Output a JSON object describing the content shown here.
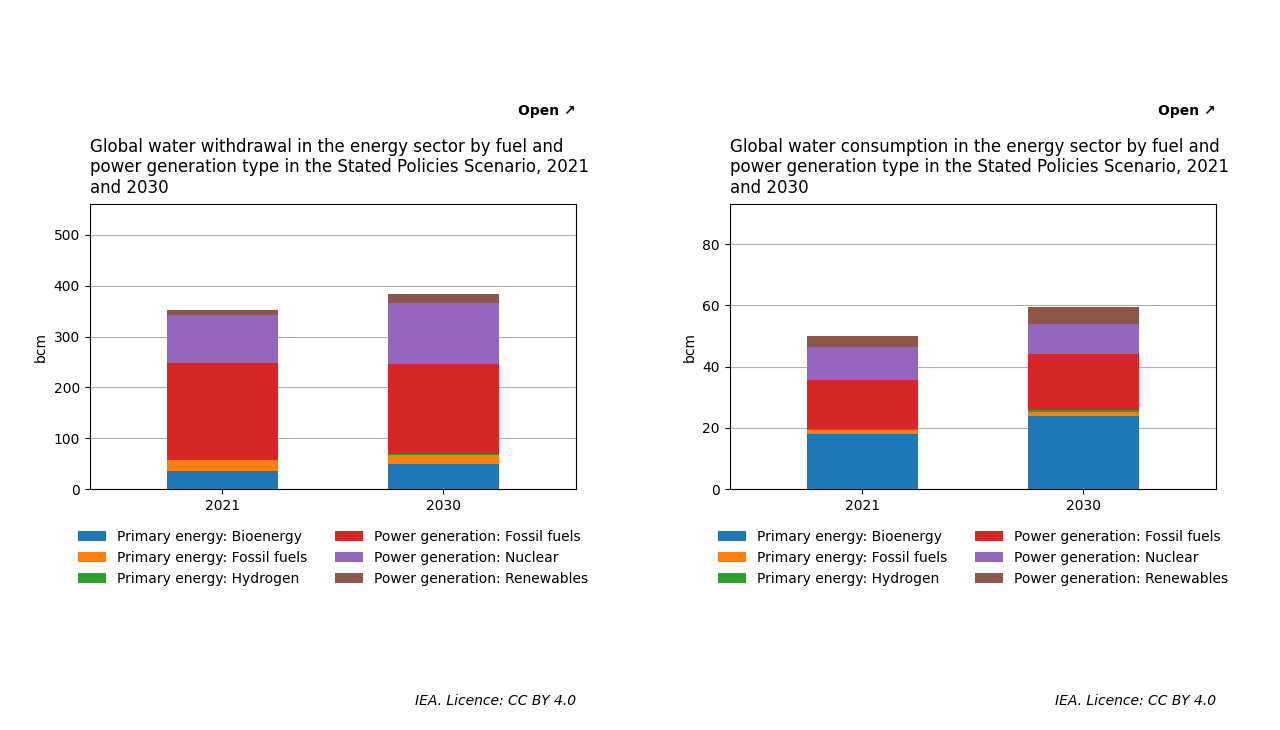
{
  "chart_data": [
    {
      "type": "bar",
      "stacked": true,
      "title": "Global water withdrawal in the energy sector by fuel and\npower generation type in the Stated Policies Scenario, 2021\nand 2030",
      "ylabel": "bcm",
      "categories": [
        "2021",
        "2030"
      ],
      "series": [
        {
          "name": "Primary energy: Bioenergy",
          "values": [
            35,
            50
          ]
        },
        {
          "name": "Primary energy: Fossil fuels",
          "values": [
            22,
            18
          ]
        },
        {
          "name": "Primary energy: Hydrogen",
          "values": [
            0.5,
            0.5
          ]
        },
        {
          "name": "Power generation: Fossil fuels",
          "values": [
            190,
            178
          ]
        },
        {
          "name": "Power generation: Nuclear",
          "values": [
            95,
            120
          ]
        },
        {
          "name": "Power generation: Renewables",
          "values": [
            10,
            18
          ]
        }
      ],
      "ylim": [
        0,
        560
      ],
      "yticks": [
        0,
        100,
        200,
        300,
        400,
        500
      ],
      "grid": true,
      "legend": "upper center",
      "annotations": [
        "Open ↗",
        "IEA. Licence: CC BY 4.0"
      ]
    },
    {
      "type": "bar",
      "stacked": true,
      "title": "Global water consumption in the energy sector by fuel and\npower generation type in the Stated Policies Scenario, 2021\nand 2030",
      "ylabel": "bcm",
      "categories": [
        "2021",
        "2030"
      ],
      "series": [
        {
          "name": "Primary energy: Bioenergy",
          "values": [
            18,
            24
          ]
        },
        {
          "name": "Primary energy: Fossil fuels",
          "values": [
            1.2,
            1.2
          ]
        },
        {
          "name": "Primary energy: Hydrogen",
          "values": [
            0.3,
            0.8
          ]
        },
        {
          "name": "Power generation: Fossil fuels",
          "values": [
            16,
            18
          ]
        },
        {
          "name": "Power generation: Nuclear",
          "values": [
            11,
            10
          ]
        },
        {
          "name": "Power generation: Renewables",
          "values": [
            3.5,
            5.5
          ]
        }
      ],
      "ylim": [
        0,
        93
      ],
      "yticks": [
        0,
        20,
        40,
        60,
        80
      ],
      "grid": true,
      "legend": "upper center",
      "annotations": [
        "Open ↗",
        "IEA. Licence: CC BY 4.0"
      ]
    }
  ]
}
